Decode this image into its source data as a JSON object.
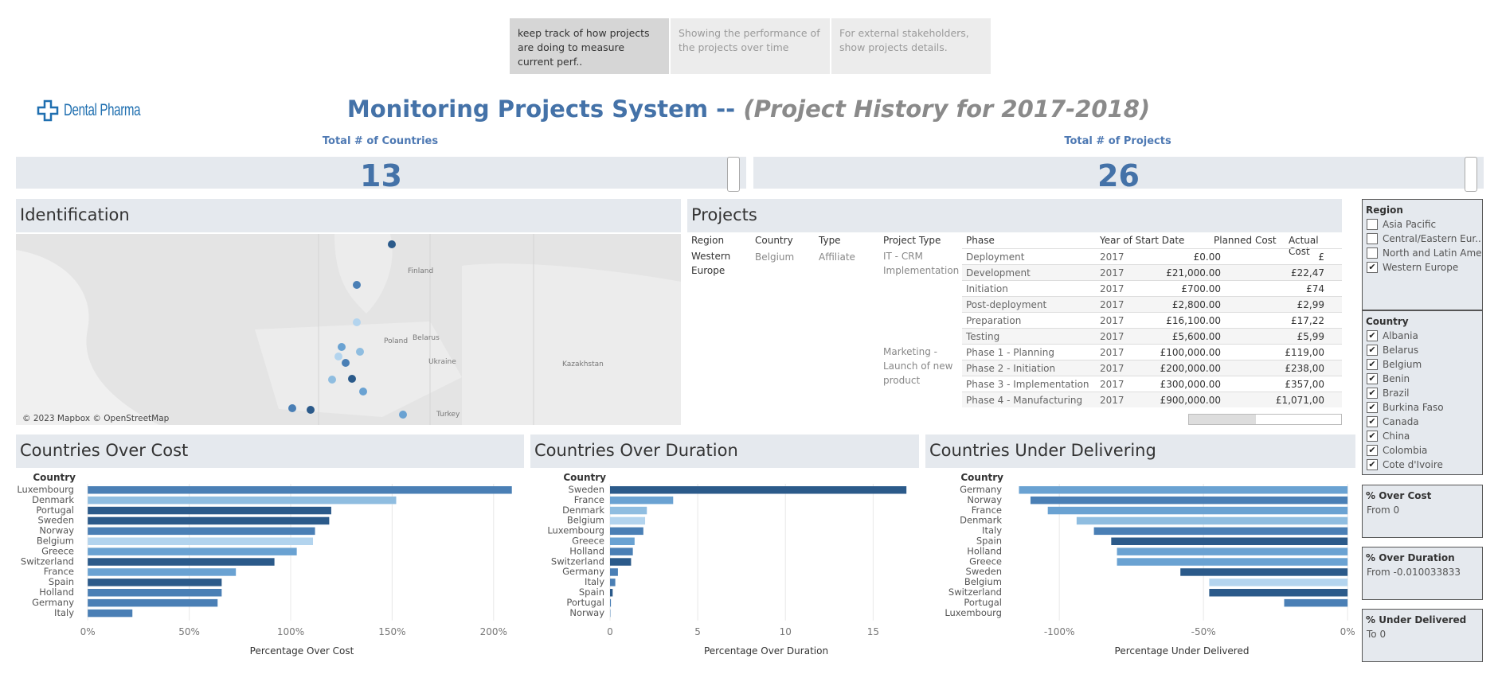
{
  "tabs": [
    {
      "text": "keep track of how projects are doing to measure current perf.."
    },
    {
      "text": "Showing the performance of the projects over time"
    },
    {
      "text": "For external stakeholders, show projects details."
    }
  ],
  "logo": {
    "text": "Dental Pharma"
  },
  "title": {
    "main": "Monitoring Projects System -- ",
    "sub": "(Project History for 2017-2018)"
  },
  "kpis": [
    {
      "label": "Total # of Countries",
      "value": "13"
    },
    {
      "label": "Total # of Projects",
      "value": "26"
    }
  ],
  "identification": {
    "title": "Identification",
    "attribution": "© 2023 Mapbox © OpenStreetMap",
    "place_labels": [
      "Finland",
      "Poland",
      "Belarus",
      "Ukraine",
      "Kazakhstan",
      "Turkey"
    ]
  },
  "projects": {
    "title": "Projects",
    "headers": [
      "Region",
      "Country",
      "Type",
      "Project Type",
      "Phase",
      "Year of Start Date",
      "Planned Cost",
      "Actual Cost"
    ],
    "region": "Western Europe",
    "country": "Belgium",
    "type": "Affiliate",
    "project_types": [
      "IT - CRM Implementation",
      "Marketing - Launch of new product"
    ],
    "rows": [
      {
        "phase": "Deployment",
        "year": "2017",
        "planned": "£0.00",
        "actual": "£"
      },
      {
        "phase": "Development",
        "year": "2017",
        "planned": "£21,000.00",
        "actual": "£22,47"
      },
      {
        "phase": "Initiation",
        "year": "2017",
        "planned": "£700.00",
        "actual": "£74"
      },
      {
        "phase": "Post-deployment",
        "year": "2017",
        "planned": "£2,800.00",
        "actual": "£2,99"
      },
      {
        "phase": "Preparation",
        "year": "2017",
        "planned": "£16,100.00",
        "actual": "£17,22"
      },
      {
        "phase": "Testing",
        "year": "2017",
        "planned": "£5,600.00",
        "actual": "£5,99"
      },
      {
        "phase": "Phase 1 - Planning",
        "year": "2017",
        "planned": "£100,000.00",
        "actual": "£119,00"
      },
      {
        "phase": "Phase 2 - Initiation",
        "year": "2017",
        "planned": "£200,000.00",
        "actual": "£238,00"
      },
      {
        "phase": "Phase 3 - Implementation",
        "year": "2017",
        "planned": "£300,000.00",
        "actual": "£357,00"
      },
      {
        "phase": "Phase 4 - Manufacturing",
        "year": "2017",
        "planned": "£900,000.00",
        "actual": "£1,071,00"
      }
    ]
  },
  "filters": {
    "region": {
      "title": "Region",
      "items": [
        {
          "label": "Asia Pacific",
          "checked": false
        },
        {
          "label": "Central/Eastern Eur..",
          "checked": false
        },
        {
          "label": "North and Latin Ame..",
          "checked": false
        },
        {
          "label": "Western Europe",
          "checked": true
        }
      ]
    },
    "country": {
      "title": "Country",
      "items": [
        {
          "label": "Albania",
          "checked": true
        },
        {
          "label": "Belarus",
          "checked": true
        },
        {
          "label": "Belgium",
          "checked": true
        },
        {
          "label": "Benin",
          "checked": true
        },
        {
          "label": "Brazil",
          "checked": true
        },
        {
          "label": "Burkina Faso",
          "checked": true
        },
        {
          "label": "Canada",
          "checked": true
        },
        {
          "label": "China",
          "checked": true
        },
        {
          "label": "Colombia",
          "checked": true
        },
        {
          "label": "Cote d'Ivoire",
          "checked": true
        }
      ]
    },
    "over_cost": {
      "title": "% Over Cost",
      "value": "From 0"
    },
    "over_duration": {
      "title": "% Over Duration",
      "value": "From -0.010033833"
    },
    "under_delivered": {
      "title": "% Under Delivered",
      "value": "To 0"
    }
  },
  "chart_data": [
    {
      "type": "bar",
      "title": "Countries Over Cost",
      "dim_label": "Country",
      "xlabel": "Percentage Over Cost",
      "categories": [
        "Luxembourg",
        "Denmark",
        "Portugal",
        "Sweden",
        "Norway",
        "Belgium",
        "Greece",
        "Switzerland",
        "France",
        "Spain",
        "Holland",
        "Germany",
        "Italy"
      ],
      "values": [
        209,
        152,
        120,
        119,
        112,
        111,
        103,
        92,
        73,
        66,
        66,
        64,
        22
      ],
      "colors": [
        "#4a7fb5",
        "#8fbde0",
        "#2b5a8a",
        "#2b5a8a",
        "#4a7fb5",
        "#b3d4ee",
        "#6aa2d2",
        "#2b5a8a",
        "#6aa2d2",
        "#2b5a8a",
        "#4a7fb5",
        "#4a7fb5",
        "#4a7fb5"
      ],
      "xlim": [
        -4,
        215
      ],
      "ticks": [
        0,
        50,
        100,
        150,
        200
      ],
      "tick_labels": [
        "0%",
        "50%",
        "100%",
        "150%",
        "200%"
      ]
    },
    {
      "type": "bar",
      "title": "Countries Over Duration",
      "dim_label": "Country",
      "xlabel": "Percentage Over Duration",
      "categories": [
        "Sweden",
        "France",
        "Denmark",
        "Belgium",
        "Luxembourg",
        "Greece",
        "Holland",
        "Switzerland",
        "Germany",
        "Italy",
        "Spain",
        "Portugal",
        "Norway"
      ],
      "values": [
        16.9,
        3.6,
        2.1,
        2.0,
        1.9,
        1.4,
        1.3,
        1.2,
        0.45,
        0.3,
        0.15,
        0.05,
        0.02
      ],
      "colors": [
        "#2b5a8a",
        "#6aa2d2",
        "#8fbde0",
        "#b3d4ee",
        "#4a7fb5",
        "#6aa2d2",
        "#4a7fb5",
        "#2b5a8a",
        "#4a7fb5",
        "#4a7fb5",
        "#2b5a8a",
        "#4a7fb5",
        "#4a7fb5"
      ],
      "xlim": [
        0,
        17.8
      ],
      "ticks": [
        0,
        5,
        10,
        15
      ],
      "tick_labels": [
        "0",
        "5",
        "10",
        "15"
      ]
    },
    {
      "type": "bar",
      "title": "Countries Under Delivering",
      "dim_label": "Country",
      "xlabel": "Percentage Under Delivered",
      "categories": [
        "Germany",
        "Norway",
        "France",
        "Denmark",
        "Italy",
        "Spain",
        "Holland",
        "Greece",
        "Sweden",
        "Belgium",
        "Switzerland",
        "Portugal",
        "Luxembourg"
      ],
      "values": [
        -114,
        -110,
        -104,
        -94,
        -88,
        -82,
        -80,
        -80,
        -58,
        -48,
        -48,
        -22,
        0
      ],
      "colors": [
        "#6aa2d2",
        "#4a7fb5",
        "#6aa2d2",
        "#8fbde0",
        "#4a7fb5",
        "#2b5a8a",
        "#6aa2d2",
        "#6aa2d2",
        "#2b5a8a",
        "#b3d4ee",
        "#2b5a8a",
        "#4a7fb5",
        "#4a7fb5"
      ],
      "xlim": [
        -118,
        3
      ],
      "ticks": [
        -100,
        -50,
        0
      ],
      "tick_labels": [
        "-100%",
        "-50%",
        "0%"
      ]
    }
  ]
}
